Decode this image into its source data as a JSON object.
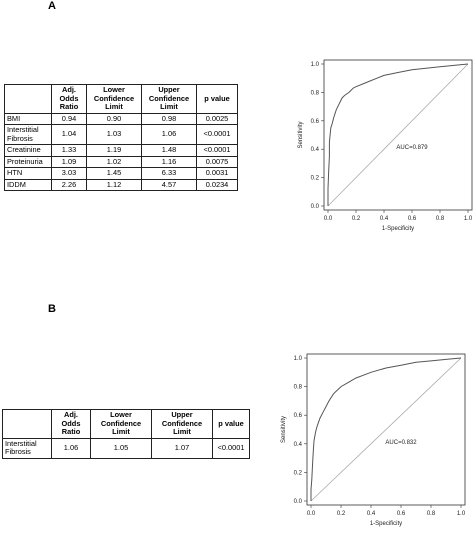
{
  "panels": [
    {
      "label": "A",
      "table": {
        "headers": [
          "",
          "Adj.\nOdds\nRatio",
          "Lower\nConfidence\nLimit",
          "Upper\nConfidence\nLimit",
          "p value"
        ],
        "rows": [
          [
            "BMI",
            "0.94",
            "0.90",
            "0.98",
            "0.0025"
          ],
          [
            "Interstitial\nFibrosis",
            "1.04",
            "1.03",
            "1.06",
            "<0.0001"
          ],
          [
            "Creatinine",
            "1.33",
            "1.19",
            "1.48",
            "<0.0001"
          ],
          [
            "Proteinuria",
            "1.09",
            "1.02",
            "1.16",
            "0.0075"
          ],
          [
            "HTN",
            "3.03",
            "1.45",
            "6.33",
            "0.0031"
          ],
          [
            "IDDM",
            "2.26",
            "1.12",
            "4.57",
            "0.0234"
          ]
        ]
      }
    },
    {
      "label": "B",
      "table": {
        "headers": [
          "",
          "Adj.\nOdds\nRatio",
          "Lower\nConfidence\nLimit",
          "Upper\nConfidence\nLimit",
          "p value"
        ],
        "rows": [
          [
            "Interstitial\nFibrosis",
            "1.06",
            "1.05",
            "1.07",
            "<0.0001"
          ]
        ]
      }
    }
  ],
  "chart_data": [
    {
      "type": "line",
      "xlabel": "1-Specificity",
      "ylabel": "Sensitivity",
      "xlim": [
        0,
        1
      ],
      "ylim": [
        0,
        1
      ],
      "xticks": [
        "0.0",
        "0.2",
        "0.4",
        "0.6",
        "0.8",
        "1.0"
      ],
      "yticks": [
        "0.0",
        "0.2",
        "0.4",
        "0.6",
        "0.8",
        "1.0"
      ],
      "annotation": "AUC=0.879",
      "diagonal": true,
      "grid": false,
      "series": [
        {
          "x": [
            0,
            0,
            0.005,
            0.01,
            0.01,
            0.015,
            0.02,
            0.03,
            0.04,
            0.05,
            0.06,
            0.08,
            0.1,
            0.12,
            0.15,
            0.18,
            0.2,
            0.25,
            0.3,
            0.35,
            0.4,
            0.5,
            0.6,
            0.7,
            0.8,
            0.9,
            1.0
          ],
          "y": [
            0,
            0.12,
            0.25,
            0.35,
            0.45,
            0.5,
            0.55,
            0.58,
            0.62,
            0.65,
            0.68,
            0.72,
            0.76,
            0.78,
            0.8,
            0.83,
            0.84,
            0.86,
            0.88,
            0.9,
            0.92,
            0.94,
            0.96,
            0.97,
            0.98,
            0.99,
            1.0
          ]
        }
      ]
    },
    {
      "type": "line",
      "xlabel": "1-Specificity",
      "ylabel": "Sensitivity",
      "xlim": [
        0,
        1
      ],
      "ylim": [
        0,
        1
      ],
      "xticks": [
        "0.0",
        "0.2",
        "0.4",
        "0.6",
        "0.8",
        "1.0"
      ],
      "yticks": [
        "0.0",
        "0.2",
        "0.4",
        "0.6",
        "0.8",
        "1.0"
      ],
      "annotation": "AUC=0.832",
      "diagonal": true,
      "grid": false,
      "series": [
        {
          "x": [
            0,
            0,
            0.005,
            0.01,
            0.015,
            0.02,
            0.03,
            0.04,
            0.05,
            0.06,
            0.08,
            0.1,
            0.12,
            0.15,
            0.18,
            0.2,
            0.25,
            0.3,
            0.35,
            0.4,
            0.5,
            0.6,
            0.7,
            0.8,
            0.9,
            1.0
          ],
          "y": [
            0,
            0.08,
            0.15,
            0.25,
            0.35,
            0.42,
            0.48,
            0.52,
            0.55,
            0.58,
            0.62,
            0.66,
            0.7,
            0.75,
            0.78,
            0.8,
            0.83,
            0.86,
            0.88,
            0.9,
            0.93,
            0.95,
            0.97,
            0.98,
            0.99,
            1.0
          ]
        }
      ]
    }
  ]
}
